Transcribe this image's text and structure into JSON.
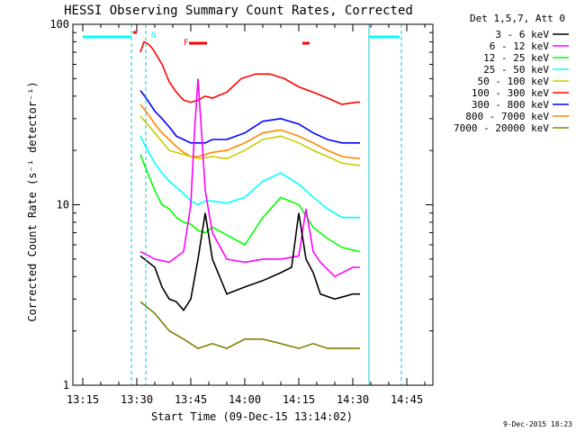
{
  "chart_data": {
    "type": "line",
    "title": "HESSI Observing Summary Count Rates, Corrected",
    "ylabel": "Corrected Count Rate (s⁻¹ detector⁻¹)",
    "xlabel": "Start Time (09-Dec-15 13:14:02)",
    "y_scale": "log",
    "ylim": [
      1,
      100
    ],
    "xlim_minutes": [
      0,
      100
    ],
    "x_ticks": [
      {
        "min": 0,
        "label": "13:15"
      },
      {
        "min": 15,
        "label": "13:30"
      },
      {
        "min": 30,
        "label": "13:45"
      },
      {
        "min": 45,
        "label": "14:00"
      },
      {
        "min": 60,
        "label": "14:15"
      },
      {
        "min": 75,
        "label": "14:30"
      },
      {
        "min": 90,
        "label": "14:45"
      }
    ],
    "y_ticks": [
      {
        "v": 1,
        "label": "1"
      },
      {
        "v": 10,
        "label": "10"
      },
      {
        "v": 100,
        "label": "100"
      }
    ],
    "legend_header": "Det 1,5,7, Att 0",
    "legend_placement": "right",
    "series": [
      {
        "name": "3 - 6 keV",
        "color": "#000000",
        "x": [
          16,
          20,
          22,
          24,
          26,
          28,
          30,
          32,
          34,
          36,
          40,
          45,
          50,
          55,
          58,
          60,
          62,
          64,
          66,
          70,
          75,
          77
        ],
        "y": [
          5.2,
          4.5,
          3.5,
          3.0,
          2.9,
          2.6,
          3.0,
          5.0,
          9.0,
          5.0,
          3.2,
          3.5,
          3.8,
          4.2,
          4.5,
          9.0,
          5.0,
          4.2,
          3.2,
          3.0,
          3.2,
          3.2
        ]
      },
      {
        "name": "6 - 12 keV",
        "color": "#ff00ff",
        "x": [
          16,
          20,
          24,
          28,
          30,
          31,
          32,
          33,
          34,
          36,
          40,
          45,
          50,
          55,
          60,
          62,
          64,
          66,
          70,
          75,
          77
        ],
        "y": [
          5.5,
          5.0,
          4.8,
          5.5,
          10.0,
          25.0,
          50.0,
          25.0,
          12.0,
          7.0,
          5.0,
          4.8,
          5.0,
          5.0,
          5.2,
          9.5,
          5.5,
          4.8,
          4.0,
          4.5,
          4.5
        ]
      },
      {
        "name": "12 - 25 keV",
        "color": "#00ff00",
        "x": [
          16,
          18,
          20,
          22,
          24,
          26,
          28,
          30,
          32,
          34,
          36,
          40,
          45,
          50,
          55,
          60,
          64,
          68,
          72,
          77
        ],
        "y": [
          19.0,
          15.0,
          12.0,
          10.0,
          9.5,
          8.5,
          8.0,
          7.8,
          7.2,
          7.0,
          7.5,
          6.8,
          6.0,
          8.5,
          11.0,
          10.0,
          7.5,
          6.5,
          5.8,
          5.5
        ]
      },
      {
        "name": "25 - 50 keV",
        "color": "#00ffff",
        "x": [
          16,
          18,
          20,
          22,
          24,
          26,
          28,
          30,
          32,
          34,
          36,
          40,
          45,
          50,
          55,
          60,
          64,
          68,
          72,
          77
        ],
        "y": [
          24.0,
          20.0,
          17.0,
          15.0,
          13.5,
          12.5,
          11.5,
          10.5,
          10.0,
          10.5,
          10.5,
          10.2,
          11.0,
          13.5,
          15.0,
          13.0,
          11.0,
          9.5,
          8.5,
          8.5
        ]
      },
      {
        "name": "50 - 100 keV",
        "color": "#cccc00",
        "x": [
          16,
          20,
          24,
          28,
          32,
          36,
          40,
          45,
          50,
          55,
          60,
          64,
          68,
          72,
          77
        ],
        "y": [
          31.0,
          25.0,
          20.0,
          19.0,
          18.0,
          18.5,
          18.0,
          20.0,
          23.0,
          24.0,
          22.0,
          20.0,
          18.5,
          17.0,
          16.5
        ]
      },
      {
        "name": "100 - 300 keV",
        "color": "#ff0000",
        "x": [
          16,
          17,
          18,
          19,
          20,
          22,
          24,
          26,
          28,
          30,
          32,
          34,
          36,
          40,
          44,
          48,
          52,
          56,
          60,
          64,
          68,
          72,
          76,
          77
        ],
        "y": [
          70.0,
          80.0,
          78.0,
          75.0,
          70.0,
          60.0,
          48.0,
          42.0,
          38.0,
          37.0,
          38.0,
          40.0,
          39.0,
          42.0,
          50.0,
          53.0,
          53.0,
          50.0,
          45.0,
          42.0,
          39.0,
          36.0,
          37.0,
          37.0
        ]
      },
      {
        "name": "300 - 800 keV",
        "color": "#0000ff",
        "x": [
          16,
          18,
          20,
          22,
          24,
          26,
          28,
          30,
          32,
          34,
          36,
          40,
          45,
          50,
          55,
          60,
          64,
          68,
          72,
          77
        ],
        "y": [
          43.0,
          38.0,
          33.0,
          30.0,
          27.0,
          24.0,
          23.0,
          22.0,
          22.0,
          22.0,
          23.0,
          23.0,
          25.0,
          29.0,
          30.0,
          28.0,
          25.0,
          23.0,
          22.0,
          22.0
        ]
      },
      {
        "name": "800 - 7000 keV",
        "color": "#ff8800",
        "x": [
          16,
          18,
          20,
          22,
          24,
          26,
          28,
          30,
          32,
          34,
          36,
          40,
          45,
          50,
          55,
          60,
          64,
          68,
          72,
          77
        ],
        "y": [
          36.0,
          32.0,
          28.0,
          25.0,
          23.0,
          21.0,
          19.5,
          18.5,
          18.5,
          19.0,
          19.5,
          20.0,
          22.0,
          25.0,
          26.0,
          24.0,
          22.0,
          20.0,
          18.5,
          18.0
        ]
      },
      {
        "name": "7000 - 20000 keV",
        "color": "#808000",
        "x": [
          16,
          20,
          24,
          28,
          32,
          36,
          40,
          45,
          50,
          55,
          60,
          64,
          68,
          72,
          77
        ],
        "y": [
          2.9,
          2.5,
          2.0,
          1.8,
          1.6,
          1.7,
          1.6,
          1.8,
          1.8,
          1.7,
          1.6,
          1.7,
          1.6,
          1.6,
          1.6
        ]
      }
    ],
    "markers": [
      {
        "label": "N",
        "color": "#00ffff",
        "x": 17.5
      }
    ],
    "flare_marker": {
      "label": "F",
      "color": "#ff0000",
      "x": 28
    },
    "flare_bars": [
      {
        "x": [
          29.5,
          34.5
        ]
      },
      {
        "x": [
          61,
          63
        ]
      }
    ],
    "small_red_bar": {
      "x": [
        14,
        15
      ]
    },
    "night_bars": [
      {
        "x": [
          0,
          13.5
        ]
      },
      {
        "x": [
          79.5,
          88
        ]
      }
    ],
    "dashed_vlines": [
      13.5,
      17.5,
      88.5
    ],
    "solid_vlines": [
      79.5
    ],
    "timestamp": "9-Dec-2015 18:23"
  }
}
